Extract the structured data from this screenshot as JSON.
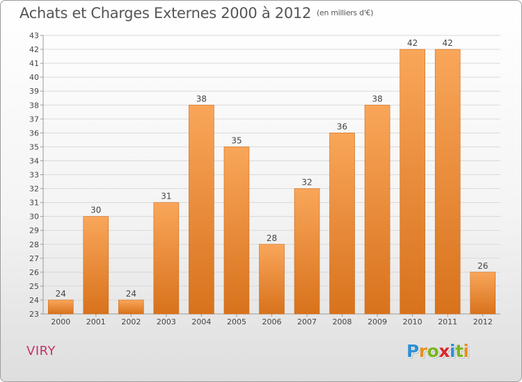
{
  "title": {
    "main": "Achats et Charges Externes 2000 à 2012",
    "unit": "(en milliers d'€)"
  },
  "location": "VIRY",
  "logo": {
    "letters": [
      {
        "ch": "P",
        "color": "#2f8fd6"
      },
      {
        "ch": "r",
        "color": "#e8901c"
      },
      {
        "ch": "o",
        "color": "#7ab51d"
      },
      {
        "ch": "x",
        "color": "#d8262e"
      },
      {
        "ch": "i",
        "color": "#2f8fd6"
      },
      {
        "ch": "t",
        "color": "#7ab51d"
      },
      {
        "ch": "i",
        "color": "#e8901c"
      }
    ]
  },
  "colors": {
    "bar_top": "#f9a65a",
    "bar_bottom": "#d8721c",
    "bar_edge": "#cc6a18",
    "grid": "#d9d9d9",
    "axis_text": "#444444"
  },
  "chart_data": {
    "type": "bar",
    "categories": [
      "2000",
      "2001",
      "2002",
      "2003",
      "2004",
      "2005",
      "2006",
      "2007",
      "2008",
      "2009",
      "2010",
      "2011",
      "2012"
    ],
    "values": [
      24,
      30,
      24,
      31,
      38,
      35,
      28,
      32,
      36,
      38,
      42,
      42,
      26
    ],
    "data_labels": [
      "24",
      "30",
      "24",
      "31",
      "38",
      "35",
      "28",
      "32",
      "36",
      "38",
      "42",
      "42",
      "26"
    ],
    "ylim": [
      23,
      43
    ],
    "yticks": [
      23,
      24,
      25,
      26,
      27,
      28,
      29,
      30,
      31,
      32,
      33,
      34,
      35,
      36,
      37,
      38,
      39,
      40,
      41,
      42,
      43
    ],
    "grid": true,
    "xlabel": "",
    "ylabel": ""
  }
}
